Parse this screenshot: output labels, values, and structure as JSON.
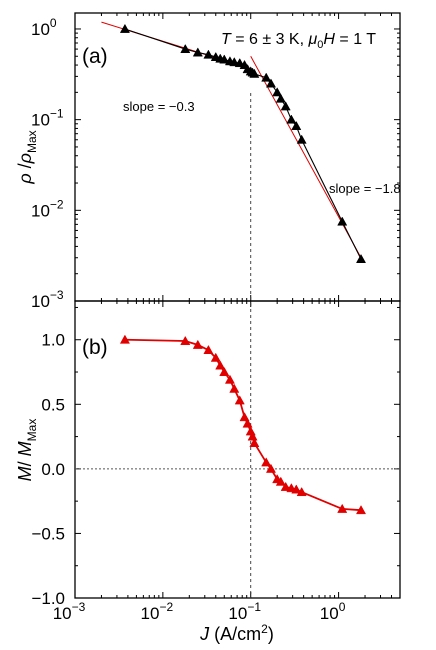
{
  "chart_data": [
    {
      "type": "scatter",
      "panel_label": "(a)",
      "condition": {
        "t_sym": "T",
        "t_text": " = 6 ± 3 K, ",
        "mu": "μ",
        "mu_sub": "0",
        "h_sym": "H",
        "h_text": " = 1 T"
      },
      "ylabel": {
        "rho": "ρ",
        "slash": " /",
        "rho2": "ρ",
        "sub": "Max"
      },
      "xscale": "log",
      "yscale": "log",
      "xlim": [
        0.001,
        5
      ],
      "ylim": [
        0.001,
        1.5
      ],
      "yticks": [
        {
          "value": 1,
          "base": "10",
          "exp": "0"
        },
        {
          "value": 0.1,
          "base": "10",
          "exp": "-1"
        },
        {
          "value": 0.01,
          "base": "10",
          "exp": "-2"
        },
        {
          "value": 0.001,
          "base": "10",
          "exp": "-3"
        }
      ],
      "series": [
        {
          "marker": "triangle",
          "color": "#000000",
          "x": [
            0.0037,
            0.018,
            0.025,
            0.033,
            0.04,
            0.045,
            0.05,
            0.058,
            0.065,
            0.075,
            0.085,
            0.092,
            0.1,
            0.105,
            0.11,
            0.15,
            0.17,
            0.2,
            0.22,
            0.25,
            0.29,
            0.33,
            0.38,
            1.1,
            1.8
          ],
          "y": [
            1.0,
            0.6,
            0.55,
            0.52,
            0.49,
            0.47,
            0.46,
            0.44,
            0.43,
            0.42,
            0.4,
            0.36,
            0.34,
            0.33,
            0.32,
            0.29,
            0.25,
            0.2,
            0.17,
            0.14,
            0.1,
            0.085,
            0.06,
            0.0075,
            0.0029
          ]
        }
      ],
      "fit_lines": [
        {
          "x": [
            0.002,
            0.1
          ],
          "y": [
            1.19,
            0.365
          ],
          "color": "#e00000"
        },
        {
          "x": [
            0.1,
            1.8
          ],
          "y": [
            0.5,
            0.003
          ],
          "color": "#e00000"
        }
      ],
      "annotations": [
        {
          "text": "slope = −0.3",
          "x": 0.015,
          "y": 0.3
        },
        {
          "text": "slope = −1.8",
          "x": 0.42,
          "y": 0.043
        }
      ]
    },
    {
      "type": "line",
      "panel_label": "(b)",
      "ylabel": {
        "m": "M",
        "slash": "/ ",
        "m2": "M",
        "sub": "Max"
      },
      "xlabel": {
        "j": "J",
        "units": " (A/cm",
        "sup": "2",
        "close": ")"
      },
      "xscale": "log",
      "xlim": [
        0.001,
        5
      ],
      "ylim": [
        -1.0,
        1.3
      ],
      "xticks": [
        {
          "value": 0.001,
          "base": "10",
          "exp": "-3"
        },
        {
          "value": 0.01,
          "base": "10",
          "exp": "-2"
        },
        {
          "value": 0.1,
          "base": "10",
          "exp": "-1"
        },
        {
          "value": 1,
          "base": "10",
          "exp": "0"
        }
      ],
      "yticks": [
        "1.0",
        "0.5",
        "0.0",
        "-0.5",
        "-1.0"
      ],
      "series": [
        {
          "marker": "triangle",
          "color": "#e00000",
          "x": [
            0.0037,
            0.018,
            0.025,
            0.033,
            0.04,
            0.045,
            0.05,
            0.058,
            0.065,
            0.075,
            0.085,
            0.092,
            0.1,
            0.105,
            0.11,
            0.15,
            0.17,
            0.2,
            0.22,
            0.25,
            0.29,
            0.33,
            0.38,
            1.1,
            1.8
          ],
          "y": [
            1.0,
            0.99,
            0.96,
            0.92,
            0.86,
            0.8,
            0.75,
            0.69,
            0.62,
            0.53,
            0.4,
            0.35,
            0.29,
            0.25,
            0.2,
            0.05,
            0.0,
            -0.08,
            -0.1,
            -0.14,
            -0.15,
            -0.16,
            -0.18,
            -0.31,
            -0.32
          ]
        }
      ],
      "reference_lines": [
        {
          "orientation": "horizontal",
          "value": 0.0,
          "style": "dotted"
        },
        {
          "orientation": "vertical",
          "value": 0.1,
          "style": "dashed",
          "span": "both-panels"
        }
      ]
    }
  ]
}
